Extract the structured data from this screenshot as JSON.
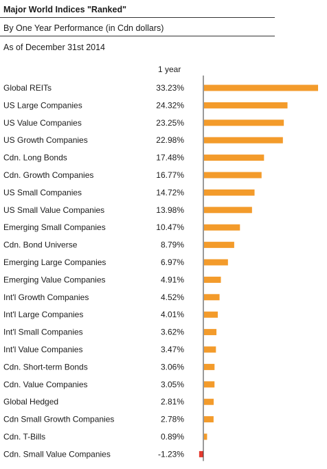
{
  "header": {
    "title": "Major World Indices \"Ranked\"",
    "subtitle": "By One Year Performance (in Cdn dollars)",
    "as_of": "As of December 31st 2014"
  },
  "colors": {
    "positive_bar": "#f39b2b",
    "negative_bar": "#e53a2f",
    "axis": "#333333"
  },
  "chart_data": {
    "type": "bar",
    "orientation": "horizontal",
    "title": "Major World Indices \"Ranked\"",
    "subtitle": "By One Year Performance (in Cdn dollars)",
    "value_column_label": "1 year",
    "unit": "%",
    "categories": [
      "Global REITs",
      "US Large Companies",
      "US Value Companies",
      "US Growth Companies",
      "Cdn. Long Bonds",
      "Cdn. Growth Companies",
      "US Small Companies",
      "US Small Value Companies",
      "Emerging Small Companies",
      "Cdn. Bond Universe",
      "Emerging Large Companies",
      "Emerging Value Companies",
      "Int'l Growth Companies",
      "Int'l Large Companies",
      "Int'l Small Companies",
      "Int'l Value Companies",
      "Cdn. Short-term Bonds",
      "Cdn. Value Companies",
      "Global Hedged",
      "Cdn Small Growth Companies",
      "Cdn. T-Bills",
      "Cdn. Small Value Companies"
    ],
    "value_labels": [
      "33.23%",
      "24.32%",
      "23.25%",
      "22.98%",
      "17.48%",
      "16.77%",
      "14.72%",
      "13.98%",
      "10.47%",
      "8.79%",
      "6.97%",
      "4.91%",
      "4.52%",
      "4.01%",
      "3.62%",
      "3.47%",
      "3.06%",
      "3.05%",
      "2.81%",
      "2.78%",
      "0.89%",
      "-1.23%"
    ],
    "values": [
      33.23,
      24.32,
      23.25,
      22.98,
      17.48,
      16.77,
      14.72,
      13.98,
      10.47,
      8.79,
      6.97,
      4.91,
      4.52,
      4.01,
      3.62,
      3.47,
      3.06,
      3.05,
      2.81,
      2.78,
      0.89,
      -1.23
    ],
    "xlim": [
      -1.23,
      33.23
    ],
    "grid": false,
    "legend": "none"
  }
}
